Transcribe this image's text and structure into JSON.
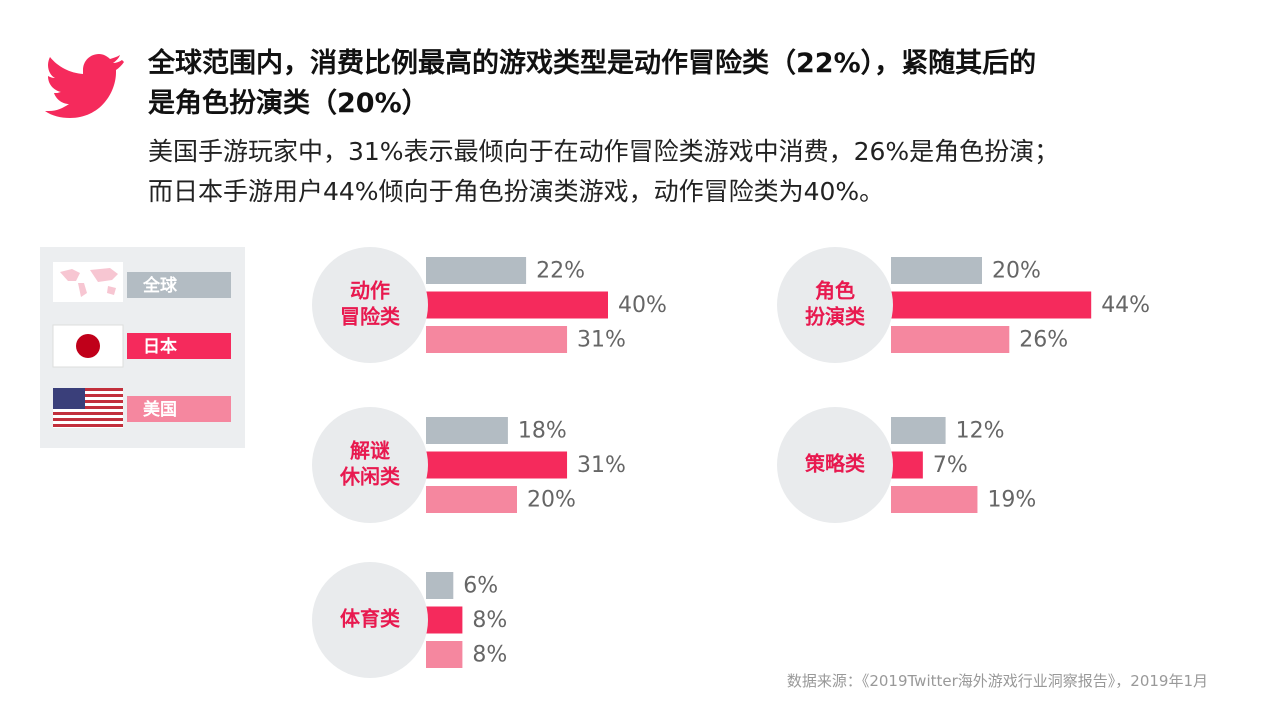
{
  "header": {
    "title_lines": [
      "全球范围内，消费比例最高的游戏类型是动作冒险类（22%），紧随其后的",
      "是角色扮演类（20%）"
    ],
    "subtitle_lines": [
      "美国手游玩家中，31%表示最倾向于在动作冒险类游戏中消费，26%是角色扮演；",
      "而日本手游用户44%倾向于角色扮演类游戏，动作冒险类为40%。"
    ]
  },
  "legend": [
    {
      "name": "全球",
      "color": "#b3bcc3"
    },
    {
      "name": "日本",
      "color": "#f52a5c"
    },
    {
      "name": "美国",
      "color": "#f5879f"
    }
  ],
  "chart_data": [
    {
      "type": "bar",
      "orientation": "horizontal",
      "label_lines": [
        "动作",
        "冒险类"
      ],
      "values": [
        22,
        40,
        31
      ],
      "value_labels": [
        "22%",
        "40%",
        "31%"
      ]
    },
    {
      "type": "bar",
      "orientation": "horizontal",
      "label_lines": [
        "角色",
        "扮演类"
      ],
      "values": [
        20,
        44,
        26
      ],
      "value_labels": [
        "20%",
        "44%",
        "26%"
      ]
    },
    {
      "type": "bar",
      "orientation": "horizontal",
      "label_lines": [
        "解谜",
        "休闲类"
      ],
      "values": [
        18,
        31,
        20
      ],
      "value_labels": [
        "18%",
        "31%",
        "20%"
      ]
    },
    {
      "type": "bar",
      "orientation": "horizontal",
      "label_lines": [
        "策略类"
      ],
      "values": [
        12,
        7,
        19
      ],
      "value_labels": [
        "12%",
        "7%",
        "19%"
      ]
    },
    {
      "type": "bar",
      "orientation": "horizontal",
      "label_lines": [
        "体育类"
      ],
      "values": [
        6,
        8,
        8
      ],
      "value_labels": [
        "6%",
        "8%",
        "8%"
      ]
    }
  ],
  "source": "数据来源：《2019Twitter海外游戏行业洞察报告》，2019年1月"
}
